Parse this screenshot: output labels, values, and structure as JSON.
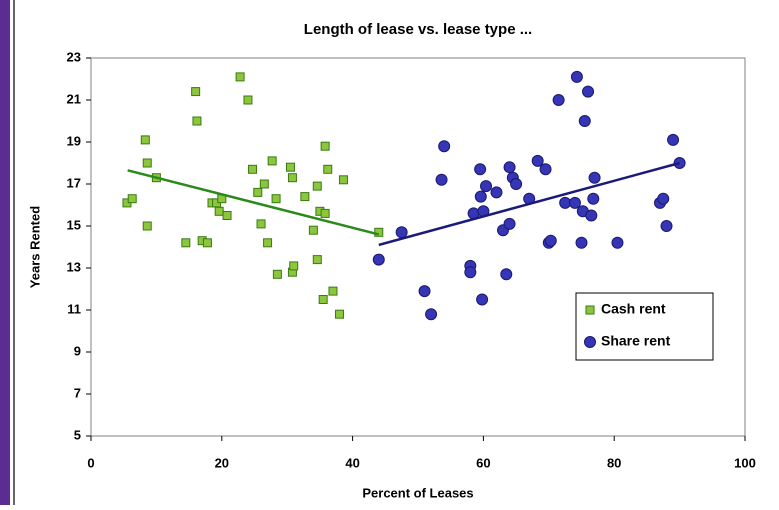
{
  "chart_data": {
    "type": "scatter",
    "title": "Length of lease vs. lease type ...",
    "xlabel": "Percent of Leases",
    "ylabel": "Years Rented",
    "xlim": [
      0,
      100
    ],
    "xticks": [
      0,
      20,
      40,
      60,
      80,
      100
    ],
    "ylim": [
      5,
      23
    ],
    "yticks": [
      5,
      7,
      9,
      11,
      13,
      15,
      17,
      19,
      21,
      23
    ],
    "grid": false,
    "legend": "lower right",
    "series": [
      {
        "name": "Cash rent",
        "color": "#8cc63f",
        "marker": "square",
        "trend_color": "#2a8a1a",
        "x": [
          5.5,
          6.3,
          8.3,
          8.6,
          8.6,
          10,
          14.5,
          16,
          16.2,
          17,
          17.8,
          18.5,
          19.2,
          19.6,
          20,
          20.8,
          22.8,
          24,
          24.7,
          25.5,
          26,
          26.5,
          27,
          27.7,
          28.3,
          28.5,
          30.5,
          30.8,
          30.8,
          31,
          32.7,
          34,
          34.6,
          34.6,
          35,
          35.5,
          35.8,
          35.8,
          36.2,
          37,
          38,
          38.6,
          44
        ],
        "y": [
          16.1,
          16.3,
          19.1,
          18,
          15,
          17.3,
          14.2,
          21.4,
          20,
          14.3,
          14.2,
          16.1,
          16.1,
          15.7,
          16.3,
          15.5,
          22.1,
          21,
          17.7,
          16.6,
          15.1,
          17,
          14.2,
          18.1,
          16.3,
          12.7,
          17.8,
          17.3,
          12.8,
          13.1,
          16.4,
          14.8,
          16.9,
          13.4,
          15.7,
          11.5,
          18.8,
          15.6,
          17.7,
          11.9,
          10.8,
          17.2,
          14.7
        ],
        "trend_x": [
          5.6,
          44
        ],
        "trend_y": [
          17.65,
          14.6
        ]
      },
      {
        "name": "Share rent",
        "color": "#3535b5",
        "marker": "circle",
        "trend_color": "#1a1a7a",
        "x": [
          44,
          47.5,
          51,
          52,
          53.6,
          54,
          58,
          58,
          58.5,
          59.5,
          59.6,
          59.8,
          60,
          60.4,
          62,
          63,
          63.5,
          64,
          64,
          64.5,
          65,
          67,
          68.3,
          69.5,
          70,
          70.3,
          71.5,
          72.5,
          74,
          74.3,
          75,
          75.2,
          75.5,
          76,
          76.5,
          76.8,
          77,
          80.5,
          87,
          87.5,
          88,
          89,
          90
        ],
        "y": [
          13.4,
          14.7,
          11.9,
          10.8,
          17.2,
          18.8,
          13.1,
          12.8,
          15.6,
          17.7,
          16.4,
          11.5,
          15.7,
          16.9,
          16.6,
          14.8,
          12.7,
          15.1,
          17.8,
          17.3,
          17.0,
          16.3,
          18.1,
          17.7,
          14.2,
          14.3,
          21,
          16.1,
          16.1,
          22.1,
          14.2,
          15.7,
          20,
          21.4,
          15.5,
          16.3,
          17.3,
          14.2,
          16.1,
          16.3,
          15,
          19.1,
          18
        ],
        "trend_x": [
          44,
          90
        ],
        "trend_y": [
          14.1,
          18
        ]
      }
    ]
  }
}
